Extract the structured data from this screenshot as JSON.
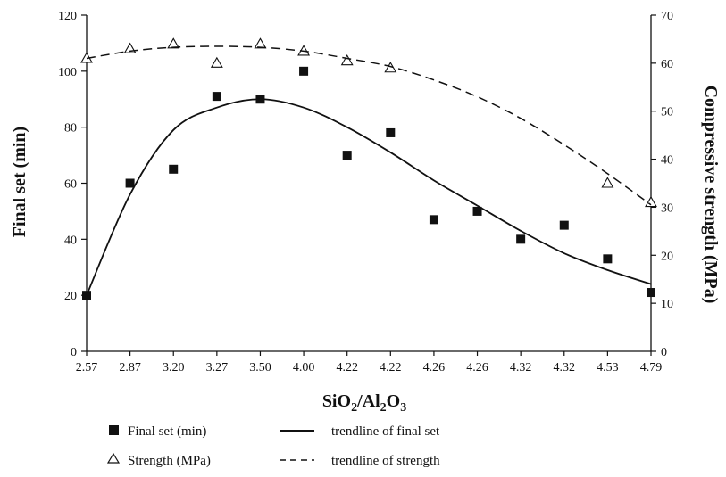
{
  "chart_data": {
    "type": "scatter",
    "title": "",
    "categories": [
      "2.57",
      "2.87",
      "3.20",
      "3.27",
      "3.50",
      "4.00",
      "4.22",
      "4.22",
      "4.26",
      "4.26",
      "4.32",
      "4.32",
      "4.53",
      "4.79"
    ],
    "xlabel": {
      "base1": "SiO",
      "sub1": "2",
      "mid": "/Al",
      "sub2": "2",
      "base2": "O",
      "sub3": "3"
    },
    "ylabel_left": "Final set (min)",
    "ylabel_right": "Compressive strength (MPa)",
    "ylim_left": [
      0,
      120
    ],
    "yticks_left": [
      "0",
      "20",
      "40",
      "60",
      "80",
      "100",
      "120"
    ],
    "ylim_right": [
      0,
      70
    ],
    "yticks_right": [
      "0",
      "10",
      "20",
      "30",
      "40",
      "50",
      "60",
      "70"
    ],
    "grid": false,
    "legend_position": "bottom",
    "series": [
      {
        "name": "Final set (min)",
        "kind": "points",
        "marker": "square",
        "axis": "left",
        "values": [
          20,
          60,
          65,
          91,
          90,
          100,
          70,
          78,
          47,
          50,
          40,
          45,
          33,
          21
        ]
      },
      {
        "name": "trendline of final set",
        "kind": "line",
        "dash": "solid",
        "axis": "left",
        "values": [
          20,
          56,
          79,
          87,
          90,
          87,
          80,
          71,
          61,
          52,
          43,
          35,
          29,
          24
        ]
      },
      {
        "name": "Strength (MPa)",
        "kind": "points",
        "marker": "triangle-open",
        "axis": "right",
        "values": [
          61,
          63,
          64,
          60,
          64,
          62.5,
          60.5,
          59,
          null,
          null,
          null,
          null,
          35,
          31
        ]
      },
      {
        "name": "trendline of strength",
        "kind": "line",
        "dash": "dashed",
        "axis": "right",
        "values": [
          61,
          62.5,
          63.3,
          63.5,
          63.3,
          62.5,
          61,
          59.3,
          56.5,
          53,
          48.5,
          43,
          37,
          30.5
        ]
      }
    ],
    "legend": [
      {
        "symbol": "square",
        "label": "Final set (min)"
      },
      {
        "symbol": "solid-line",
        "label": "trendline of final set"
      },
      {
        "symbol": "triangle",
        "label": "Strength (MPa)"
      },
      {
        "symbol": "dashed-line",
        "label": "trendline of strength"
      }
    ]
  }
}
